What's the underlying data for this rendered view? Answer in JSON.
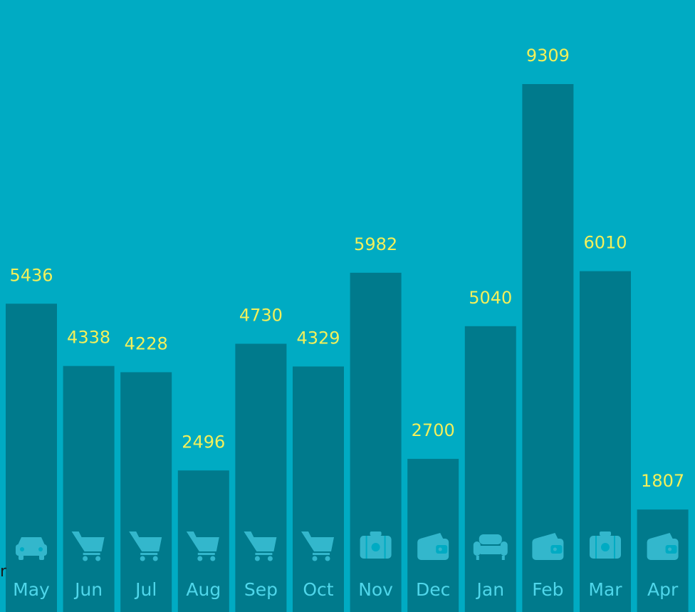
{
  "chart_data": {
    "type": "bar",
    "title": "",
    "xlabel": "",
    "ylabel": "",
    "ylim": [
      0,
      10000
    ],
    "grid": false,
    "categories": [
      "May",
      "Jun",
      "Jul",
      "Aug",
      "Sep",
      "Oct",
      "Nov",
      "Dec",
      "Jan",
      "Feb",
      "Mar",
      "Apr"
    ],
    "values": [
      5436,
      4338,
      4228,
      2496,
      4730,
      4329,
      5982,
      2700,
      5040,
      9309,
      6010,
      1807
    ],
    "icons": [
      "car-icon",
      "cart-icon",
      "cart-icon",
      "cart-icon",
      "cart-icon",
      "cart-icon",
      "suitcase-icon",
      "wallet-icon",
      "sofa-icon",
      "wallet-icon",
      "suitcase-icon",
      "wallet-icon"
    ]
  },
  "colors": {
    "background": "#00abc3",
    "bar": "#007a8c",
    "value_label": "#f3f05a",
    "icon": "#33b7cc",
    "icon_above_bar": "#00798b",
    "month_label": "#4fd6ea"
  },
  "stray_glyph": "r"
}
